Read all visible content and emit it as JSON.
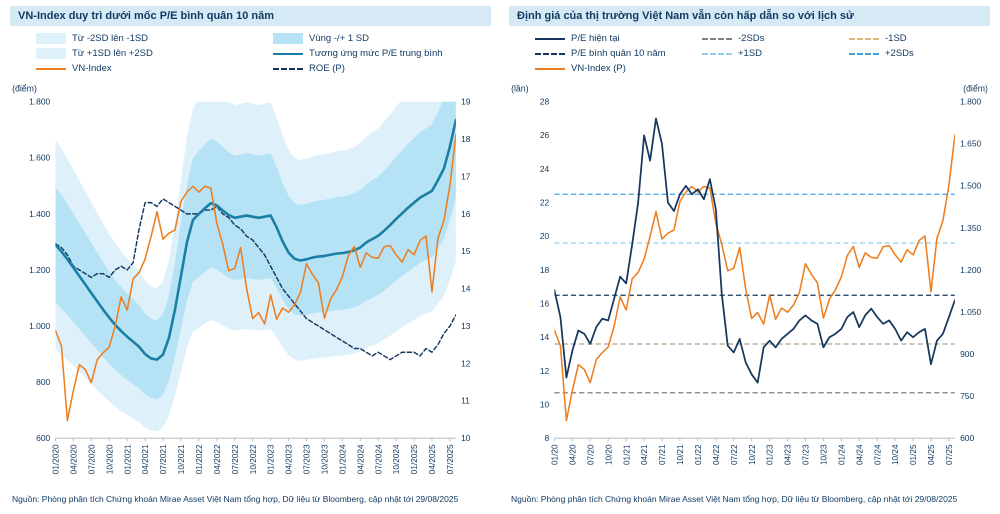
{
  "source_note": "Nguồn: Phòng phân tích Chứng khoán Mirae Asset Việt Nam tổng hợp,  Dữ liệu từ Bloomberg, cập nhật tới 29/08/2025",
  "colors": {
    "navy": "#17375E",
    "orange": "#EE7D1E",
    "teal": "#1A7FA5",
    "band_inner": "#B5E3F5",
    "band_outer": "#DEF1FB",
    "title_bg": "#D6EAF6",
    "gray": "#808080",
    "tan": "#E3B77E",
    "lightblue": "#92CFEC",
    "midblue": "#3FA3DA",
    "axis": "#B9C2CC"
  },
  "chart_data": [
    {
      "type": "line",
      "title": "VN-Index duy trì dưới mốc P/E bình quân 10 năm",
      "n_points": 68,
      "x_tick_every": 3,
      "x_tick_labels": [
        "01/2020",
        "04/2020",
        "07/2020",
        "10/2020",
        "01/2021",
        "04/2021",
        "07/2021",
        "10/2021",
        "01/2022",
        "04/2022",
        "07/2022",
        "10/2022",
        "01/2023",
        "04/2023",
        "07/2023",
        "10/2023",
        "01/2024",
        "04/2024",
        "07/2024",
        "10/2024",
        "01/2025",
        "04/2025",
        "07/2025"
      ],
      "y_left": {
        "label": "(điểm)",
        "min": 600,
        "max": 1800,
        "tick_values": [
          600,
          800,
          1000,
          1200,
          1400,
          1600,
          1800
        ],
        "ticks": [
          "600",
          "800",
          "1.000",
          "1.200",
          "1.400",
          "1.600",
          "1.800"
        ]
      },
      "y_right": {
        "label": "",
        "min": 10,
        "max": 19,
        "tick_values": [
          10,
          11,
          12,
          13,
          14,
          15,
          16,
          17,
          18,
          19
        ],
        "ticks": [
          "10",
          "11",
          "12",
          "13",
          "14",
          "15",
          "16",
          "17",
          "18",
          "19"
        ]
      },
      "legend": [
        {
          "label": "Từ -2SD lên -1SD",
          "swatch": "area",
          "color": "#DEF1FB"
        },
        {
          "label": "Vùng -/+ 1 SD",
          "swatch": "area",
          "color": "#B5E3F5"
        },
        {
          "label": "Từ +1SD lên +2SD",
          "swatch": "area",
          "color": "#DEF1FB"
        },
        {
          "label": "Tương ứng mức P/E trung bình",
          "swatch": "line",
          "color": "#1A7FA5"
        },
        {
          "label": "VN-Index",
          "swatch": "line",
          "color": "#EE7D1E"
        },
        {
          "label": "ROE (P)",
          "swatch": "dashed",
          "color": "#17375E"
        }
      ],
      "bands": {
        "mean_key": "pe_mean_index",
        "inner_ratio": 0.16,
        "outer_ratio": 0.29,
        "inner_color": "#B5E3F5",
        "outer_color": "#DEF1FB"
      },
      "series_meta": [
        {
          "key": "roe",
          "axis": "right",
          "color": "#17375E",
          "width": 1.4,
          "dash": "4 2.5",
          "name": "roe-line"
        },
        {
          "key": "pe_mean_index",
          "axis": "left",
          "color": "#1A7FA5",
          "width": 2.5,
          "dash": "",
          "name": "pe-mean-index-line"
        },
        {
          "key": "vnindex",
          "axis": "left",
          "color": "#EE7D1E",
          "width": 1.5,
          "dash": "",
          "name": "vnindex-line"
        }
      ],
      "series": {
        "vnindex": [
          985,
          930,
          663,
          770,
          862,
          845,
          798,
          880,
          905,
          925,
          1000,
          1104,
          1057,
          1168,
          1191,
          1239,
          1320,
          1408,
          1310,
          1331,
          1342,
          1444,
          1478,
          1498,
          1478,
          1498,
          1492,
          1366,
          1292,
          1197,
          1206,
          1280,
          1132,
          1027,
          1048,
          1007,
          1111,
          1024,
          1064,
          1049,
          1075,
          1120,
          1222,
          1184,
          1154,
          1028,
          1095,
          1129,
          1175,
          1252,
          1284,
          1209,
          1261,
          1245,
          1242,
          1283,
          1287,
          1254,
          1228,
          1272,
          1254,
          1305,
          1321,
          1122,
          1313,
          1376,
          1502,
          1682
        ],
        "pe_mean_index": [
          1290,
          1266,
          1238,
          1208,
          1178,
          1148,
          1118,
          1088,
          1058,
          1030,
          1004,
          982,
          962,
          944,
          926,
          900,
          884,
          880,
          898,
          958,
          1058,
          1178,
          1298,
          1378,
          1400,
          1420,
          1438,
          1430,
          1412,
          1396,
          1386,
          1390,
          1394,
          1390,
          1386,
          1390,
          1394,
          1352,
          1302,
          1262,
          1240,
          1234,
          1238,
          1244,
          1248,
          1250,
          1254,
          1258,
          1260,
          1264,
          1270,
          1280,
          1298,
          1310,
          1322,
          1340,
          1360,
          1382,
          1402,
          1422,
          1440,
          1458,
          1470,
          1482,
          1520,
          1562,
          1640,
          1735
        ],
        "roe": [
          15.2,
          15.1,
          14.9,
          14.6,
          14.5,
          14.4,
          14.3,
          14.4,
          14.4,
          14.3,
          14.5,
          14.6,
          14.5,
          14.7,
          15.6,
          16.3,
          16.3,
          16.2,
          16.4,
          16.3,
          16.2,
          16.1,
          16.0,
          16.0,
          16.0,
          16.1,
          16.1,
          16.2,
          16.0,
          15.9,
          15.7,
          15.6,
          15.4,
          15.3,
          15.1,
          14.9,
          14.6,
          14.3,
          14.0,
          13.8,
          13.6,
          13.4,
          13.2,
          13.1,
          13.0,
          12.9,
          12.8,
          12.7,
          12.6,
          12.5,
          12.4,
          12.4,
          12.3,
          12.2,
          12.3,
          12.2,
          12.1,
          12.2,
          12.3,
          12.3,
          12.3,
          12.2,
          12.4,
          12.3,
          12.5,
          12.8,
          13.0,
          13.3
        ]
      }
    },
    {
      "type": "line",
      "title": "Định giá của thị trường Việt Nam vẫn còn hấp dẫn so với lịch sử",
      "n_points": 68,
      "x_tick_every": 3,
      "x_tick_labels": [
        "01/20",
        "04/20",
        "07/20",
        "10/20",
        "01/21",
        "04/21",
        "07/21",
        "10/21",
        "01/22",
        "04/22",
        "07/22",
        "10/22",
        "01/23",
        "04/23",
        "07/23",
        "10/23",
        "01/24",
        "04/24",
        "07/24",
        "10/24",
        "01/25",
        "04/25",
        "07/25"
      ],
      "y_left": {
        "label": "(lần)",
        "min": 8,
        "max": 28,
        "tick_values": [
          8,
          10,
          12,
          14,
          16,
          18,
          20,
          22,
          24,
          26,
          28
        ],
        "ticks": [
          "8",
          "10",
          "12",
          "14",
          "16",
          "18",
          "20",
          "22",
          "24",
          "26",
          "28"
        ]
      },
      "y_right": {
        "label": "(điểm)",
        "min": 600,
        "max": 1800,
        "tick_values": [
          600,
          750,
          900,
          1050,
          1200,
          1350,
          1500,
          1650,
          1800
        ],
        "ticks": [
          "600",
          "750",
          "900",
          "1.050",
          "1.200",
          "1.350",
          "1.500",
          "1.650",
          "1.800"
        ]
      },
      "legend": [
        {
          "label": "P/E hiện tại",
          "swatch": "line",
          "color": "#17375E"
        },
        {
          "label": "-2SDs",
          "swatch": "dashed",
          "color": "#808080"
        },
        {
          "label": "-1SD",
          "swatch": "dashed",
          "color": "#E3B77E"
        },
        {
          "label": "P/E bình quân 10 năm",
          "swatch": "dashed",
          "color": "#17375E"
        },
        {
          "label": "+1SD",
          "swatch": "dashed",
          "color": "#92CFEC"
        },
        {
          "label": "+2SDs",
          "swatch": "dashed",
          "color": "#3FA3DA"
        },
        {
          "label": "VN-Index (P)",
          "swatch": "line",
          "color": "#EE7D1E"
        }
      ],
      "hlines": [
        {
          "label": "-2SDs",
          "value": 10.7,
          "color": "#808080"
        },
        {
          "label": "-1SD",
          "value": 13.6,
          "color": "#B5A083"
        },
        {
          "label": "P/E bình quân 10 năm",
          "value": 16.5,
          "color": "#17375E"
        },
        {
          "label": "+1SD",
          "value": 19.6,
          "color": "#92CFEC"
        },
        {
          "label": "+2SDs",
          "value": 22.5,
          "color": "#3FA3DA"
        }
      ],
      "series_meta": [
        {
          "key": "vnindex",
          "axis": "right",
          "color": "#EE7D1E",
          "width": 1.5,
          "dash": "",
          "name": "vnindex-line"
        },
        {
          "key": "pe",
          "axis": "left",
          "color": "#17375E",
          "width": 1.7,
          "dash": "",
          "name": "pe-current-line"
        }
      ],
      "series": {
        "pe": [
          16.8,
          15.2,
          11.6,
          13.2,
          14.4,
          14.2,
          13.6,
          14.6,
          15.1,
          15.0,
          16.3,
          17.6,
          17.2,
          19.5,
          22.0,
          26.0,
          24.5,
          27.0,
          25.5,
          22.0,
          21.5,
          22.5,
          23.0,
          22.5,
          22.8,
          22.2,
          23.4,
          21.6,
          16.6,
          13.5,
          13.1,
          13.9,
          12.5,
          11.8,
          11.3,
          13.4,
          13.8,
          13.4,
          13.9,
          14.2,
          14.5,
          15.0,
          15.3,
          15.0,
          14.8,
          13.4,
          14.0,
          14.2,
          14.5,
          15.2,
          15.5,
          14.6,
          15.3,
          15.7,
          15.2,
          14.8,
          15.0,
          14.5,
          13.8,
          14.3,
          14.0,
          14.3,
          14.5,
          12.4,
          13.8,
          14.2,
          15.2,
          16.2
        ],
        "vnindex": [
          985,
          930,
          663,
          770,
          862,
          845,
          798,
          880,
          905,
          925,
          1000,
          1104,
          1057,
          1168,
          1191,
          1239,
          1320,
          1408,
          1310,
          1331,
          1342,
          1444,
          1478,
          1498,
          1478,
          1498,
          1492,
          1366,
          1292,
          1197,
          1206,
          1280,
          1132,
          1027,
          1048,
          1007,
          1111,
          1024,
          1064,
          1049,
          1075,
          1120,
          1222,
          1184,
          1154,
          1028,
          1095,
          1129,
          1175,
          1252,
          1284,
          1209,
          1261,
          1245,
          1242,
          1283,
          1287,
          1254,
          1228,
          1272,
          1254,
          1305,
          1321,
          1122,
          1313,
          1376,
          1502,
          1682
        ]
      }
    }
  ]
}
